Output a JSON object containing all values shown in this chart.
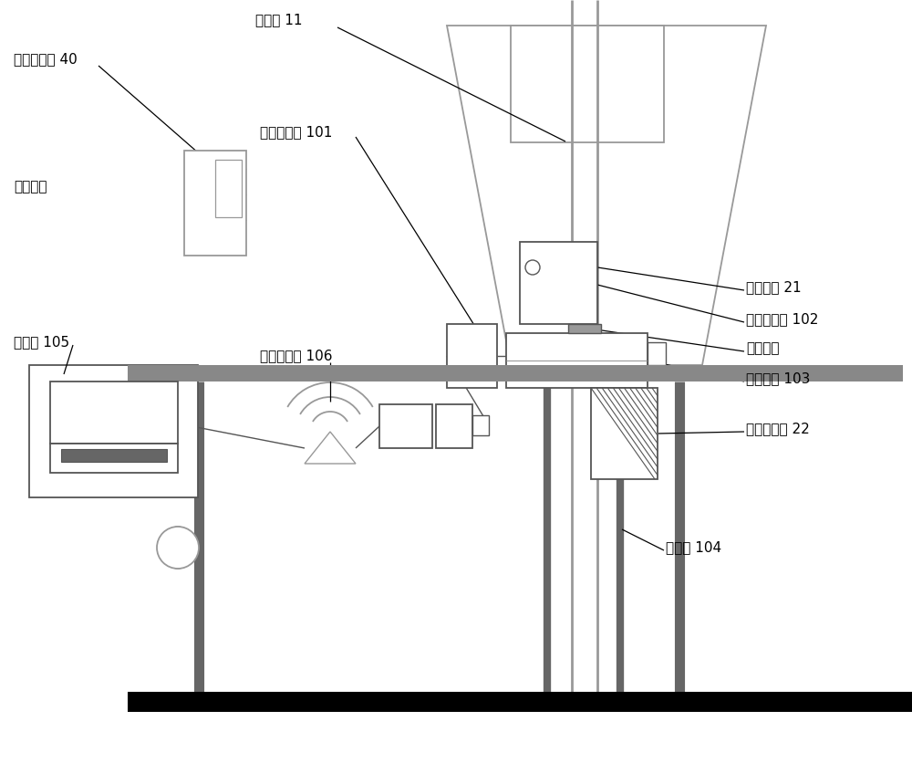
{
  "bg_color": "#ffffff",
  "line_color": "#000000",
  "gray_color": "#808080",
  "dark_gray": "#555555",
  "light_gray": "#999999",
  "mid_gray": "#bbbbbb",
  "labels": {
    "camera": "摄像头 11",
    "data_collector": "数据采集器 101",
    "remote_server": "远程服务器 40",
    "remote_trans": "远程传输",
    "host": "上位机 105",
    "wireless": "无线传输器 106",
    "tool_tag": "工具标签 21",
    "cementing_tool": "固完井工具 102",
    "makeup_pos": "上扣位置",
    "hydraulic_tong": "液压大钓 103",
    "tag_detector": "标签检测器 22",
    "conductor": "防溢管 104"
  },
  "fontsize": 11
}
